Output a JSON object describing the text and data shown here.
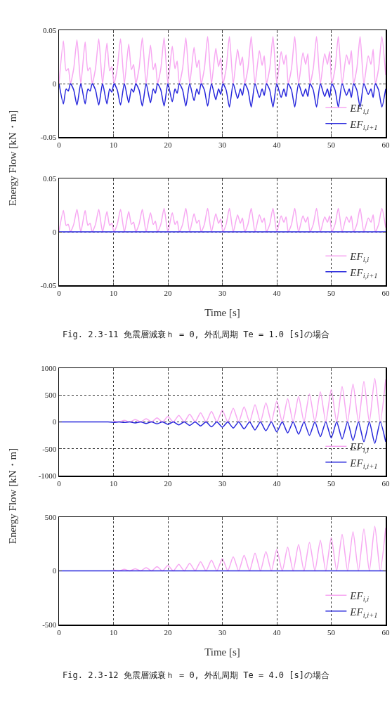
{
  "chart_data": [
    {
      "type": "line",
      "ylabel": "Energy Flow [kN・m]",
      "x": [
        0,
        0.8,
        1.3,
        1.7,
        2.1,
        2.7,
        3.3,
        4,
        4.8,
        5.3,
        5.7,
        6.1,
        6.7,
        7.3,
        8,
        8.8,
        9.3,
        9.7,
        10.1,
        10.7,
        11.3,
        12,
        12.8,
        13.3,
        13.7,
        14.1,
        14.7,
        15.3,
        16,
        16.8,
        17.3,
        17.7,
        18.1,
        18.7,
        19.3,
        20,
        20.8,
        21.3,
        21.7,
        22.1,
        22.7,
        23.3,
        24,
        24.8,
        25.3,
        25.7,
        26.1,
        26.7,
        27.3,
        28,
        28.8,
        29.3,
        29.7,
        30.1,
        30.7,
        31.3,
        32,
        32.8,
        33.3,
        33.7,
        34.1,
        34.7,
        35.3,
        36,
        36.8,
        37.3,
        37.7,
        38.1,
        38.7,
        39.3,
        40,
        40.8,
        41.3,
        41.7,
        42.1,
        42.7,
        43.3,
        44,
        44.8,
        45.3,
        45.7,
        46.1,
        46.7,
        47.3,
        48,
        48.8,
        49.3,
        49.7,
        50.1,
        50.7,
        51.3,
        52,
        52.8,
        53.3,
        53.7,
        54.1,
        54.7,
        55.3,
        56,
        56.8,
        57.3,
        57.7,
        58.1,
        58.7,
        59.3,
        60
      ],
      "series": [
        {
          "name": "EF$_{i,i}$",
          "color": "#f7a8f2",
          "values": [
            0,
            0.04,
            0.012,
            0.014,
            0,
            0.014,
            0.041,
            0,
            0.039,
            0.012,
            0.015,
            0,
            0.014,
            0.042,
            0,
            0.038,
            0.012,
            0.016,
            0,
            0.014,
            0.042,
            0,
            0.037,
            0.013,
            0.018,
            0,
            0.014,
            0.043,
            0,
            0.036,
            0.013,
            0.019,
            0,
            0.014,
            0.043,
            0,
            0.035,
            0.014,
            0.021,
            0,
            0.014,
            0.043,
            0,
            0.034,
            0.015,
            0.022,
            0,
            0.014,
            0.044,
            0,
            0.033,
            0.016,
            0.024,
            0,
            0.014,
            0.044,
            0,
            0.032,
            0.017,
            0.025,
            0,
            0.014,
            0.044,
            0,
            0.031,
            0.017,
            0.026,
            0,
            0.014,
            0.044,
            0,
            0.03,
            0.018,
            0.027,
            0,
            0.014,
            0.044,
            0,
            0.029,
            0.018,
            0.028,
            0,
            0.014,
            0.044,
            0,
            0.028,
            0.018,
            0.03,
            0,
            0.014,
            0.044,
            0,
            0.027,
            0.018,
            0.031,
            0,
            0.014,
            0.044,
            0,
            0.026,
            0.018,
            0.032,
            0,
            0.014,
            0.044,
            0.008
          ]
        },
        {
          "name": "EF$_{i,i+1}$",
          "color": "#2626dc",
          "values": [
            0,
            -0.019,
            -0.005,
            -0.007,
            0,
            -0.006,
            -0.02,
            0,
            -0.019,
            -0.005,
            -0.007,
            0,
            -0.006,
            -0.02,
            0,
            -0.019,
            -0.005,
            -0.008,
            0,
            -0.006,
            -0.02,
            0,
            -0.018,
            -0.005,
            -0.008,
            0,
            -0.006,
            -0.021,
            0,
            -0.018,
            -0.005,
            -0.009,
            0,
            -0.006,
            -0.021,
            0,
            -0.017,
            -0.005,
            -0.009,
            0,
            -0.006,
            -0.021,
            0,
            -0.016,
            -0.005,
            -0.01,
            0,
            -0.006,
            -0.021,
            0,
            -0.015,
            -0.005,
            -0.01,
            0,
            -0.006,
            -0.022,
            0,
            -0.014,
            -0.005,
            -0.011,
            0,
            -0.006,
            -0.022,
            0,
            -0.013,
            -0.005,
            -0.011,
            0,
            -0.006,
            -0.022,
            0,
            -0.013,
            -0.005,
            -0.012,
            0,
            -0.006,
            -0.022,
            0,
            -0.012,
            -0.005,
            -0.012,
            0,
            -0.006,
            -0.022,
            0,
            -0.012,
            -0.005,
            -0.013,
            0,
            -0.006,
            -0.022,
            0,
            -0.011,
            -0.005,
            -0.013,
            0,
            -0.006,
            -0.022,
            0,
            -0.01,
            -0.005,
            -0.013,
            0,
            -0.006,
            -0.022,
            -0.005
          ]
        }
      ],
      "xlim": [
        0,
        60
      ],
      "xticks": [
        0,
        10,
        20,
        30,
        40,
        50,
        60
      ],
      "ylim": [
        -0.05,
        0.05
      ],
      "yticks": [
        -0.05,
        0,
        0.05
      ],
      "grid": true,
      "legend": "bottom right"
    },
    {
      "type": "line",
      "xlabel": "Time [s]",
      "annotations": [
        "Fig. 2.3-11 免震層減衰ｈ = 0, 外乱周期 Te = 1.0 [s]の場合"
      ],
      "x": [
        0,
        0.8,
        1.3,
        1.7,
        2.1,
        2.7,
        3.3,
        4,
        4.8,
        5.3,
        5.7,
        6.1,
        6.7,
        7.3,
        8,
        8.8,
        9.3,
        9.7,
        10.1,
        10.7,
        11.3,
        12,
        12.8,
        13.3,
        13.7,
        14.1,
        14.7,
        15.3,
        16,
        16.8,
        17.3,
        17.7,
        18.1,
        18.7,
        19.3,
        20,
        20.8,
        21.3,
        21.7,
        22.1,
        22.7,
        23.3,
        24,
        24.8,
        25.3,
        25.7,
        26.1,
        26.7,
        27.3,
        28,
        28.8,
        29.3,
        29.7,
        30.1,
        30.7,
        31.3,
        32,
        32.8,
        33.3,
        33.7,
        34.1,
        34.7,
        35.3,
        36,
        36.8,
        37.3,
        37.7,
        38.1,
        38.7,
        39.3,
        40,
        40.8,
        41.3,
        41.7,
        42.1,
        42.7,
        43.3,
        44,
        44.8,
        45.3,
        45.7,
        46.1,
        46.7,
        47.3,
        48,
        48.8,
        49.3,
        49.7,
        50.1,
        50.7,
        51.3,
        52,
        52.8,
        53.3,
        53.7,
        54.1,
        54.7,
        55.3,
        56,
        56.8,
        57.3,
        57.7,
        58.1,
        58.7,
        59.3,
        60
      ],
      "series": [
        {
          "name": "EF$_{i,i}$",
          "color": "#f7a8f2",
          "values": [
            0,
            0.02,
            0.006,
            0.007,
            0,
            0.007,
            0.021,
            0,
            0.02,
            0.006,
            0.008,
            0,
            0.007,
            0.021,
            0,
            0.019,
            0.006,
            0.008,
            0,
            0.007,
            0.021,
            0,
            0.019,
            0.007,
            0.009,
            0,
            0.007,
            0.021,
            0,
            0.018,
            0.007,
            0.01,
            0,
            0.007,
            0.022,
            0,
            0.018,
            0.007,
            0.01,
            0,
            0.007,
            0.022,
            0,
            0.017,
            0.008,
            0.011,
            0,
            0.007,
            0.022,
            0,
            0.017,
            0.008,
            0.012,
            0,
            0.007,
            0.022,
            0,
            0.016,
            0.008,
            0.013,
            0,
            0.007,
            0.022,
            0,
            0.016,
            0.009,
            0.013,
            0,
            0.007,
            0.022,
            0,
            0.015,
            0.009,
            0.014,
            0,
            0.007,
            0.022,
            0,
            0.015,
            0.009,
            0.014,
            0,
            0.007,
            0.022,
            0,
            0.014,
            0.009,
            0.015,
            0,
            0.007,
            0.022,
            0,
            0.014,
            0.009,
            0.015,
            0,
            0.007,
            0.022,
            0,
            0.013,
            0.009,
            0.016,
            0,
            0.007,
            0.022,
            0.004
          ]
        },
        {
          "name": "EF$_{i,i+1}$",
          "color": "#2626dc",
          "x": [
            0,
            60
          ],
          "values": [
            0,
            0
          ]
        }
      ],
      "xlim": [
        0,
        60
      ],
      "xticks": [
        0,
        10,
        20,
        30,
        40,
        50,
        60
      ],
      "ylim": [
        -0.05,
        0.05
      ],
      "yticks": [
        -0.05,
        0,
        0.05
      ],
      "grid": true,
      "legend": "bottom right"
    },
    {
      "type": "line",
      "ylabel": "Energy Flow [kN・m]",
      "x": [
        0,
        1,
        2,
        3,
        4,
        5,
        6,
        7,
        8,
        9,
        10,
        11,
        12,
        13,
        14,
        15,
        16,
        17,
        18,
        19,
        20,
        21,
        22,
        23,
        24,
        25,
        26,
        27,
        28,
        29,
        30,
        31,
        32,
        33,
        34,
        35,
        36,
        37,
        38,
        39,
        40,
        41,
        42,
        43,
        44,
        45,
        46,
        47,
        48,
        49,
        50,
        51,
        52,
        53,
        54,
        55,
        56,
        57,
        58,
        59,
        60
      ],
      "series": [
        {
          "name": "EF$_{i,i}$",
          "color": "#f7a8f2",
          "values": [
            null,
            null,
            null,
            null,
            null,
            null,
            null,
            null,
            null,
            null,
            20,
            0,
            30,
            0,
            45,
            0,
            60,
            0,
            75,
            0,
            100,
            0,
            120,
            0,
            145,
            0,
            170,
            0,
            195,
            0,
            220,
            0,
            255,
            0,
            280,
            0,
            320,
            0,
            355,
            0,
            390,
            0,
            430,
            0,
            475,
            0,
            520,
            0,
            560,
            0,
            605,
            0,
            660,
            0,
            705,
            0,
            755,
            0,
            810,
            0,
            790
          ]
        },
        {
          "name": "EF$_{i,i+1}$",
          "color": "#2626dc",
          "values": [
            0,
            0,
            0,
            0,
            0,
            0,
            0,
            0,
            0,
            0,
            -10,
            0,
            -10,
            0,
            -20,
            0,
            -30,
            0,
            -35,
            0,
            -45,
            0,
            -55,
            0,
            -65,
            0,
            -75,
            0,
            -90,
            0,
            -100,
            0,
            -115,
            0,
            -130,
            0,
            -150,
            0,
            -165,
            0,
            -185,
            0,
            -205,
            0,
            -230,
            0,
            -250,
            0,
            -275,
            0,
            -300,
            0,
            -320,
            0,
            -345,
            0,
            -370,
            0,
            -400,
            0,
            -370
          ]
        }
      ],
      "xlim": [
        0,
        60
      ],
      "xticks": [
        0,
        10,
        20,
        30,
        40,
        50,
        60
      ],
      "ylim": [
        -1000,
        1000
      ],
      "yticks": [
        -1000,
        -500,
        0,
        500,
        1000
      ],
      "grid": true,
      "legend": "bottom right"
    },
    {
      "type": "line",
      "xlabel": "Time [s]",
      "annotations": [
        "Fig. 2.3-12 免震層減衰ｈ = 0, 外乱周期 Te = 4.0 [s]の場合"
      ],
      "series": [
        {
          "name": "EF$_{i,i}$",
          "color": "#f7a8f2",
          "x": [
            10,
            11,
            12,
            13,
            14,
            15,
            16,
            17,
            18,
            19,
            20,
            21,
            22,
            23,
            24,
            25,
            26,
            27,
            28,
            29,
            30,
            31,
            32,
            33,
            34,
            35,
            36,
            37,
            38,
            39,
            40,
            41,
            42,
            43,
            44,
            45,
            46,
            47,
            48,
            49,
            50,
            51,
            52,
            53,
            54,
            55,
            56,
            57,
            58,
            59,
            60
          ],
          "values": [
            10,
            0,
            15,
            0,
            20,
            0,
            30,
            0,
            40,
            0,
            50,
            0,
            60,
            0,
            70,
            0,
            85,
            0,
            100,
            0,
            115,
            0,
            130,
            0,
            145,
            0,
            165,
            0,
            180,
            0,
            200,
            0,
            220,
            0,
            245,
            0,
            265,
            0,
            285,
            0,
            310,
            0,
            340,
            0,
            365,
            0,
            390,
            0,
            415,
            0,
            400
          ]
        },
        {
          "name": "EF$_{i,i+1}$",
          "color": "#2626dc",
          "x": [
            0,
            60
          ],
          "values": [
            0,
            0
          ]
        }
      ],
      "xlim": [
        0,
        60
      ],
      "xticks": [
        0,
        10,
        20,
        30,
        40,
        50,
        60
      ],
      "ylim": [
        -500,
        500
      ],
      "yticks": [
        -500,
        0,
        500
      ],
      "grid": true,
      "legend": "bottom right"
    }
  ]
}
